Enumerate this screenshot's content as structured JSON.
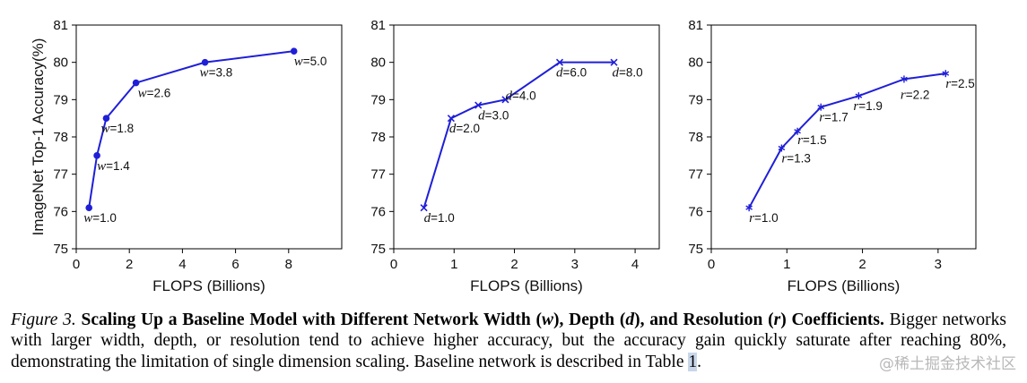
{
  "chart_data": [
    {
      "type": "line",
      "marker": "circle",
      "color": "#1f1fd8",
      "xlabel": "FLOPS (Billions)",
      "ylabel": "ImageNet Top-1 Accuracy(%)",
      "xlim": [
        0,
        10
      ],
      "ylim": [
        75,
        81
      ],
      "xticks": [
        "0",
        "2",
        "4",
        "6",
        "8"
      ],
      "yticks": [
        "75",
        "76",
        "77",
        "78",
        "79",
        "80",
        "81"
      ],
      "grid": false,
      "points": [
        {
          "x": 0.48,
          "y": 76.1,
          "var": "w",
          "text": "=1.0"
        },
        {
          "x": 0.78,
          "y": 77.5,
          "var": "w",
          "text": "=1.4"
        },
        {
          "x": 1.13,
          "y": 78.5,
          "var": "w",
          "text": "=1.8"
        },
        {
          "x": 2.25,
          "y": 79.45,
          "var": "w",
          "text": "=2.6"
        },
        {
          "x": 4.85,
          "y": 80.0,
          "var": "w",
          "text": "=3.8"
        },
        {
          "x": 8.2,
          "y": 80.3,
          "var": "w",
          "text": "=5.0"
        }
      ]
    },
    {
      "type": "line",
      "marker": "x",
      "color": "#1f1fd8",
      "xlabel": "FLOPS (Billions)",
      "ylabel": "",
      "xlim": [
        0,
        4.4
      ],
      "ylim": [
        75,
        81
      ],
      "xticks": [
        "0",
        "1",
        "2",
        "3",
        "4"
      ],
      "yticks": [
        "75",
        "76",
        "77",
        "78",
        "79",
        "80",
        "81"
      ],
      "grid": false,
      "points": [
        {
          "x": 0.5,
          "y": 76.1,
          "var": "d",
          "text": "=1.0"
        },
        {
          "x": 0.95,
          "y": 78.5,
          "var": "d",
          "text": "=2.0"
        },
        {
          "x": 1.4,
          "y": 78.85,
          "var": "d",
          "text": "=3.0"
        },
        {
          "x": 1.85,
          "y": 79.0,
          "var": "d",
          "text": "=4.0"
        },
        {
          "x": 2.75,
          "y": 80.0,
          "var": "d",
          "text": "=6.0"
        },
        {
          "x": 3.65,
          "y": 80.0,
          "var": "d",
          "text": "=8.0"
        }
      ]
    },
    {
      "type": "line",
      "marker": "star",
      "color": "#1f1fd8",
      "xlabel": "FLOPS (Billions)",
      "ylabel": "",
      "xlim": [
        0,
        3.5
      ],
      "ylim": [
        75,
        81
      ],
      "xticks": [
        "0",
        "1",
        "2",
        "3"
      ],
      "yticks": [
        "75",
        "76",
        "77",
        "78",
        "79",
        "80",
        "81"
      ],
      "grid": false,
      "points": [
        {
          "x": 0.5,
          "y": 76.1,
          "var": "r",
          "text": "=1.0"
        },
        {
          "x": 0.93,
          "y": 77.7,
          "var": "r",
          "text": "=1.3"
        },
        {
          "x": 1.14,
          "y": 78.15,
          "var": "r",
          "text": "=1.5"
        },
        {
          "x": 1.45,
          "y": 78.8,
          "var": "r",
          "text": "=1.7"
        },
        {
          "x": 1.95,
          "y": 79.1,
          "var": "r",
          "text": "=1.9"
        },
        {
          "x": 2.55,
          "y": 79.55,
          "var": "r",
          "text": "=2.2"
        },
        {
          "x": 3.1,
          "y": 79.7,
          "var": "r",
          "text": "=2.5"
        }
      ]
    }
  ],
  "caption": {
    "fig_label": "Figure 3.",
    "bold_1": "Scaling Up a Baseline Model with Different Network Width (",
    "var_w": "w",
    "bold_2": "), Depth (",
    "var_d": "d",
    "bold_3": "), and Resolution (",
    "var_r": "r",
    "bold_4": ") Coefficients.",
    "body": " Bigger networks with larger width, depth, or resolution tend to achieve higher accuracy, but the accuracy gain quickly saturate after reaching 80%, demonstrating the limitation of single dimension scaling. Baseline network is described in Table ",
    "table_ref": "1",
    "end": "."
  },
  "watermark": "@稀土掘金技术社区"
}
